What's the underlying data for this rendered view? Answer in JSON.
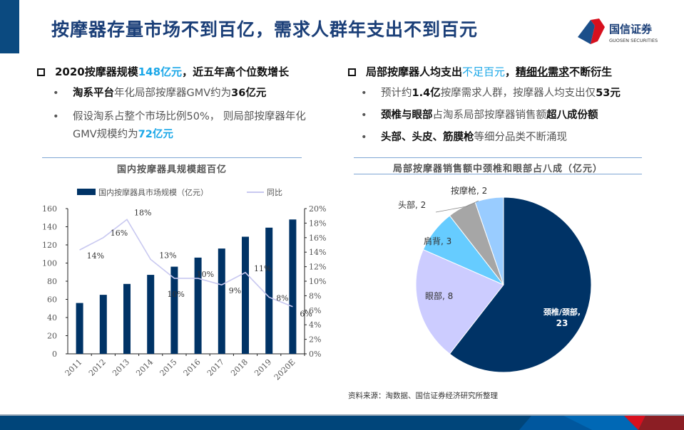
{
  "header": {
    "title": "按摩器存量市场不到百亿，需求人群年支出不到百元",
    "logo_cn": "国信证券",
    "logo_en": "GUOSEN SECURITIES"
  },
  "left": {
    "heading_pre": "2020按摩器规模",
    "heading_hl": "148亿元",
    "heading_post": "，近五年高个位数增长",
    "b1_k": "淘系平台",
    "b1_t": "年化局部按摩器GMV约为",
    "b1_v": "36亿元",
    "b2_t": "假设淘系占整个市场比例50%，  则局部按摩器年化GMV规模约为",
    "b2_v": "72亿元",
    "chart_title": "国内按摩器具规模超百亿"
  },
  "right": {
    "heading_pre": "局部按摩器人均支出",
    "heading_hl": "不足百元",
    "heading_mid": "，",
    "heading_u": "精细化需求",
    "heading_post": "不断衍生",
    "b1_t1": "预计约",
    "b1_k1": "1.4亿",
    "b1_t2": "按摩需求人群，按摩器人均支出仅",
    "b1_k2": "53元",
    "b2_k1": "颈椎与眼部",
    "b2_t": "占淘系局部按摩器销售额",
    "b2_k2": "超八成份额",
    "b3_k": "头部、头皮、筋膜枪",
    "b3_t": "等细分品类不断涌现",
    "chart_title": "局部按摩器销售额中颈椎和眼部占八成（亿元）",
    "source": "资料来源：淘数据、国信证券经济研究所整理"
  },
  "chart_data": [
    {
      "type": "bar+line",
      "categories": [
        "2011",
        "2012",
        "2013",
        "2014",
        "2015",
        "2016",
        "2017",
        "2018",
        "2019",
        "2020E"
      ],
      "series": [
        {
          "name": "国内按摩器具市场规模（亿元）",
          "type": "bar",
          "axis": "left",
          "color": "#003366",
          "values": [
            56,
            65,
            77,
            87,
            96,
            106,
            116,
            129,
            139,
            148
          ]
        },
        {
          "name": "同比",
          "type": "line",
          "axis": "right",
          "color": "#c8c8f0",
          "values": [
            14.3,
            16,
            18.5,
            13,
            10.4,
            10.4,
            9.5,
            11.2,
            7.8,
            6.5
          ],
          "labels": [
            "14%",
            "16%",
            "18%",
            "13%",
            "10%",
            "10%",
            "9%",
            "11%",
            "8%",
            "6%"
          ]
        }
      ],
      "ylim": [
        0,
        160
      ],
      "yticks": [
        "0",
        "20",
        "40",
        "60",
        "80",
        "100",
        "120",
        "140",
        "160"
      ],
      "y2lim": [
        0,
        20
      ],
      "y2ticks": [
        "0%",
        "2%",
        "4%",
        "6%",
        "8%",
        "10%",
        "12%",
        "14%",
        "16%",
        "18%",
        "20%"
      ],
      "legend": "top",
      "grid": false
    },
    {
      "type": "pie",
      "slices": [
        {
          "label": "颈椎/颈部",
          "value": 23,
          "color": "#003366"
        },
        {
          "label": "眼部",
          "value": 8,
          "color": "#ccccff"
        },
        {
          "label": "肩背",
          "value": 3,
          "color": "#66ccff"
        },
        {
          "label": "头部",
          "value": 2,
          "color": "#a6a6a6"
        },
        {
          "label": "按摩枪",
          "value": 2,
          "color": "#99ccff"
        }
      ]
    }
  ]
}
